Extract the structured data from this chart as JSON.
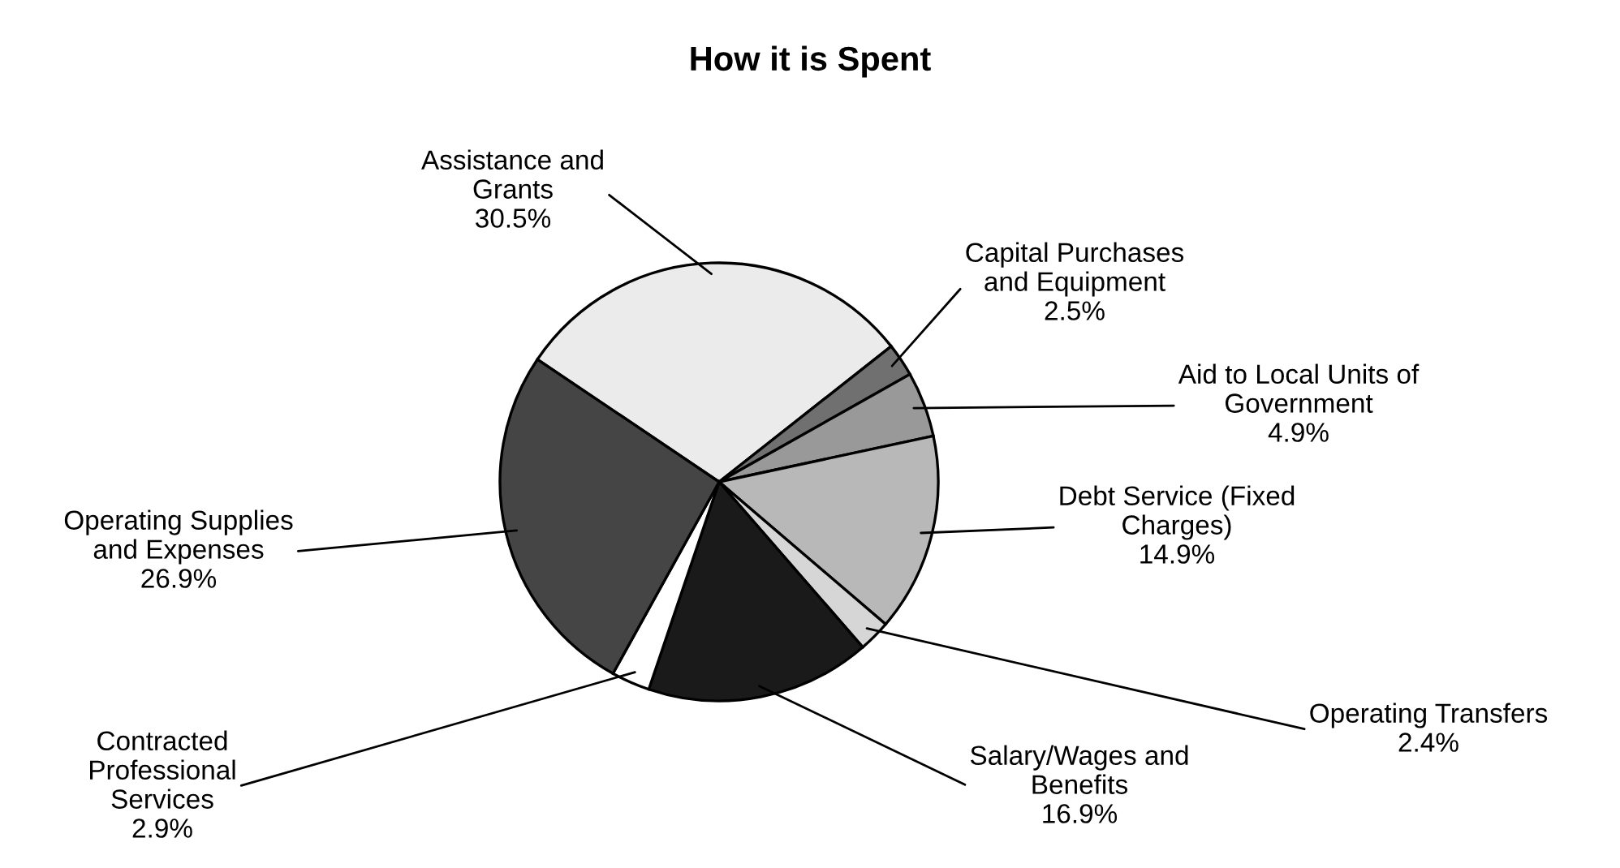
{
  "chart_data": {
    "type": "pie",
    "title": "How it is Spent",
    "categories": [
      "Assistance and\nGrants",
      "Capital Purchases\nand Equipment",
      "Aid to Local Units of\nGovernment",
      "Debt Service (Fixed\nCharges)",
      "Operating Transfers",
      "Salary/Wages and\nBenefits",
      "Contracted\nProfessional\nServices",
      "Operating Supplies\nand Expenses"
    ],
    "values": [
      30.5,
      2.5,
      4.9,
      14.9,
      2.4,
      16.9,
      2.9,
      26.9
    ],
    "value_labels": [
      "30.5%",
      "2.5%",
      "4.9%",
      "14.9%",
      "2.4%",
      "16.9%",
      "2.9%",
      "26.9%"
    ],
    "colors": [
      "#ebebeb",
      "#707070",
      "#999999",
      "#b8b8b8",
      "#d6d6d6",
      "#1a1a1a",
      "#ffffff",
      "#454545"
    ],
    "legend": false
  }
}
